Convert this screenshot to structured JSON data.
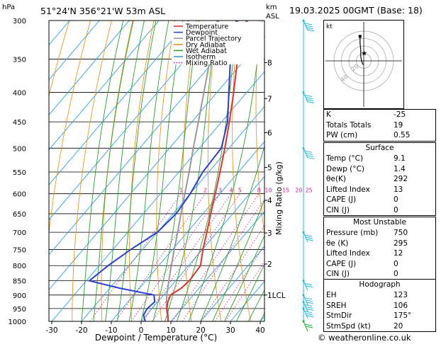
{
  "header": {
    "pressure_unit": "hPa",
    "location": "51°24'N  356°21'W  53m  ASL",
    "height_unit_top": "km",
    "height_unit_bottom": "ASL",
    "datetime": "19.03.2025  00GMT  (Base: 18)"
  },
  "chart_data": {
    "type": "skew-t log-p",
    "xlabel": "Dewpoint / Temperature (°C)",
    "ylabel_right": "Mixing Ratio (g/kg)",
    "x_ticks": [
      -30,
      -20,
      -10,
      0,
      10,
      20,
      30,
      40
    ],
    "pressure_levels": [
      300,
      350,
      400,
      450,
      500,
      550,
      600,
      650,
      700,
      750,
      800,
      850,
      900,
      950,
      1000
    ],
    "height_km_ticks": [
      {
        "label": "8",
        "p": 355
      },
      {
        "label": "7",
        "p": 410
      },
      {
        "label": "6",
        "p": 470
      },
      {
        "label": "5",
        "p": 540
      },
      {
        "label": "4",
        "p": 616
      },
      {
        "label": "3",
        "p": 702
      },
      {
        "label": "2",
        "p": 795
      },
      {
        "label": "1LCL",
        "p": 900
      }
    ],
    "mixing_ratio_labels": [
      "1",
      "2",
      "3",
      "4",
      "5",
      "8",
      "10",
      "15",
      "20",
      "25"
    ],
    "mixing_ratio_values": [
      1,
      2,
      3,
      4,
      5,
      8,
      10,
      15,
      20,
      25
    ],
    "legend": [
      {
        "name": "Temperature",
        "color": "#e8302a"
      },
      {
        "name": "Dewpoint",
        "color": "#2a3fd6"
      },
      {
        "name": "Parcel Trajectory",
        "color": "#999999"
      },
      {
        "name": "Dry Adiabat",
        "color": "#e8961e"
      },
      {
        "name": "Wet Adiabat",
        "color": "#2aa02a"
      },
      {
        "name": "Isotherm",
        "color": "#2aa0e0"
      },
      {
        "name": "Mixing Ratio",
        "color": "#c4209a"
      }
    ],
    "temperature_profile": [
      {
        "p": 1000,
        "t": 9.1
      },
      {
        "p": 975,
        "t": 7.2
      },
      {
        "p": 950,
        "t": 5.0
      },
      {
        "p": 925,
        "t": 3.4
      },
      {
        "p": 900,
        "t": 2.4
      },
      {
        "p": 875,
        "t": 4.0
      },
      {
        "p": 850,
        "t": 4.6
      },
      {
        "p": 800,
        "t": 4.0
      },
      {
        "p": 750,
        "t": 0.2
      },
      {
        "p": 700,
        "t": -3.4
      },
      {
        "p": 650,
        "t": -7.4
      },
      {
        "p": 600,
        "t": -11.6
      },
      {
        "p": 550,
        "t": -16.2
      },
      {
        "p": 500,
        "t": -21.4
      },
      {
        "p": 450,
        "t": -27.4
      },
      {
        "p": 400,
        "t": -34.4
      },
      {
        "p": 350,
        "t": -42.6
      },
      {
        "p": 320,
        "t": -47.6
      },
      {
        "p": 300,
        "t": -50.6
      }
    ],
    "dewpoint_profile": [
      {
        "p": 1000,
        "t": 1.4
      },
      {
        "p": 975,
        "t": -1.0
      },
      {
        "p": 950,
        "t": -1.6
      },
      {
        "p": 925,
        "t": -1.0
      },
      {
        "p": 900,
        "t": -3.2
      },
      {
        "p": 875,
        "t": -17.0
      },
      {
        "p": 850,
        "t": -29.0
      },
      {
        "p": 800,
        "t": -27.0
      },
      {
        "p": 750,
        "t": -24.0
      },
      {
        "p": 700,
        "t": -20.0
      },
      {
        "p": 650,
        "t": -19.0
      },
      {
        "p": 600,
        "t": -20.0
      },
      {
        "p": 550,
        "t": -22.0
      },
      {
        "p": 500,
        "t": -22.6
      },
      {
        "p": 450,
        "t": -28.0
      },
      {
        "p": 400,
        "t": -36.0
      },
      {
        "p": 350,
        "t": -45.0
      },
      {
        "p": 300,
        "t": -54.0
      }
    ],
    "parcel_profile": [
      {
        "p": 1000,
        "t": 9.1
      },
      {
        "p": 950,
        "t": 4.8
      },
      {
        "p": 900,
        "t": 1.1
      },
      {
        "p": 850,
        "t": -2.3
      },
      {
        "p": 800,
        "t": -5.8
      },
      {
        "p": 750,
        "t": -9.4
      },
      {
        "p": 700,
        "t": -13.2
      },
      {
        "p": 650,
        "t": -17.4
      },
      {
        "p": 600,
        "t": -21.8
      },
      {
        "p": 550,
        "t": -26.6
      },
      {
        "p": 500,
        "t": -32.0
      },
      {
        "p": 450,
        "t": -37.8
      },
      {
        "p": 400,
        "t": -44.4
      },
      {
        "p": 350,
        "t": -51.8
      },
      {
        "p": 300,
        "t": -60.0
      }
    ],
    "wind_barbs": [
      {
        "p": 300,
        "dir": 175,
        "speed": 55
      },
      {
        "p": 400,
        "dir": 175,
        "speed": 50
      },
      {
        "p": 500,
        "dir": 175,
        "speed": 40
      },
      {
        "p": 700,
        "dir": 180,
        "speed": 25
      },
      {
        "p": 850,
        "dir": 190,
        "speed": 20
      },
      {
        "p": 900,
        "dir": 190,
        "speed": 30
      },
      {
        "p": 925,
        "dir": 195,
        "speed": 30
      },
      {
        "p": 950,
        "dir": 190,
        "speed": 25
      },
      {
        "p": 1000,
        "dir": 180,
        "speed": 15
      }
    ],
    "colors": {
      "temperature": "#e8302a",
      "dewpoint": "#2a3fd6",
      "parcel": "#999999",
      "dry_adiabat": "#e8961e",
      "wet_adiabat": "#2aa02a",
      "isotherm": "#2aa0e0",
      "mixing_ratio": "#c4209a",
      "wind": "#20b8d8",
      "wind_surface": "#18b030"
    }
  },
  "hodograph": {
    "label": "kt",
    "ring_labels": [
      "20",
      "40"
    ],
    "ring_values": [
      10,
      20,
      30,
      40
    ],
    "trace": [
      {
        "u": -1,
        "v": -5
      },
      {
        "u": -3,
        "v": 0
      },
      {
        "u": -4,
        "v": 6
      },
      {
        "u": -4,
        "v": 14
      },
      {
        "u": -5,
        "v": 24
      },
      {
        "u": -5,
        "v": 33
      }
    ],
    "storm_motion": {
      "dir": 175,
      "speed": 20
    }
  },
  "indices": {
    "k_label": "K",
    "k": "-25",
    "tt_label": "Totals Totals",
    "tt": "19",
    "pw_label": "PW (cm)",
    "pw": "0.55"
  },
  "surface": {
    "title": "Surface",
    "temp_label": "Temp (°C)",
    "temp": "9.1",
    "dewp_label": "Dewp (°C)",
    "dewp": "1.4",
    "thetae_label": "θe(K)",
    "thetae": "292",
    "li_label": "Lifted Index",
    "li": "13",
    "cape_label": "CAPE (J)",
    "cape": "0",
    "cin_label": "CIN (J)",
    "cin": "0"
  },
  "most_unstable": {
    "title": "Most Unstable",
    "pres_label": "Pressure (mb)",
    "pres": "750",
    "thetae_label": "θe (K)",
    "thetae": "295",
    "li_label": "Lifted Index",
    "li": "12",
    "cape_label": "CAPE (J)",
    "cape": "0",
    "cin_label": "CIN (J)",
    "cin": "0"
  },
  "hodo_table": {
    "title": "Hodograph",
    "eh_label": "EH",
    "eh": "123",
    "sreh_label": "SREH",
    "sreh": "106",
    "stmdir_label": "StmDir",
    "stmdir": "175°",
    "stmspd_label": "StmSpd (kt)",
    "stmspd": "20"
  },
  "footer": {
    "credit": "© weatheronline.co.uk"
  }
}
